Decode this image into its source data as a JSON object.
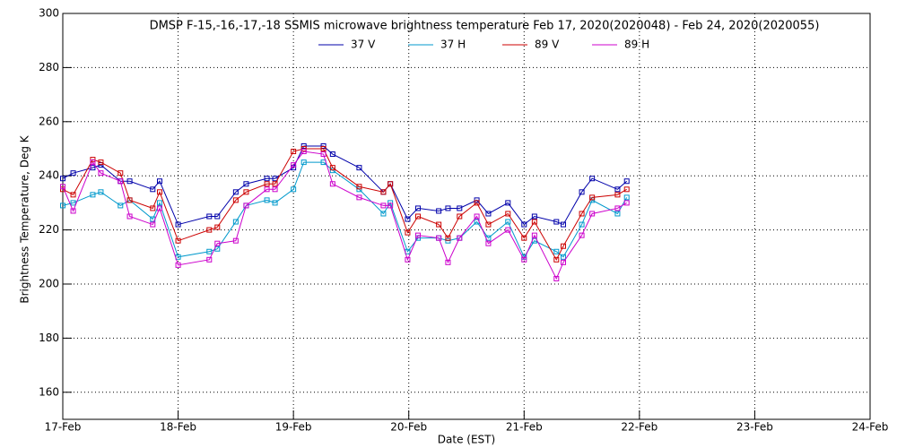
{
  "chart_data": {
    "type": "line",
    "title": "DMSP F-15,-16,-17,-18 SSMIS microwave brightness temperature Feb 17, 2020(2020048) - Feb 24, 2020(2020055)",
    "x_label": "Date (EST)",
    "y_label": "Brightness Temperature, Deg K",
    "x": [
      0,
      0.09,
      0.26,
      0.33,
      0.5,
      0.58,
      0.78,
      0.84,
      1.0,
      1.27,
      1.34,
      1.5,
      1.59,
      1.77,
      1.84,
      2.0,
      2.09,
      2.26,
      2.34,
      2.57,
      2.78,
      2.84,
      2.99,
      3.08,
      3.26,
      3.34,
      3.44,
      3.59,
      3.69,
      3.86,
      4.0,
      4.09,
      4.28,
      4.34,
      4.5,
      4.59,
      4.81,
      4.89
    ],
    "series": [
      {
        "name": "37 V",
        "color": "#0000aa",
        "values": [
          239,
          241,
          243,
          244,
          238,
          238,
          235,
          238,
          222,
          225,
          225,
          234,
          237,
          239,
          239,
          243,
          251,
          251,
          248,
          243,
          234,
          237,
          224,
          228,
          227,
          228,
          228,
          231,
          226,
          230,
          222,
          225,
          223,
          222,
          234,
          239,
          235,
          238
        ]
      },
      {
        "name": "37 H",
        "color": "#0099cc",
        "values": [
          229,
          230,
          233,
          234,
          229,
          231,
          224,
          230,
          210,
          212,
          213,
          223,
          229,
          231,
          230,
          235,
          245,
          245,
          242,
          235,
          226,
          230,
          212,
          217,
          217,
          216,
          217,
          223,
          217,
          223,
          210,
          216,
          212,
          210,
          222,
          231,
          226,
          232
        ]
      },
      {
        "name": "89 V",
        "color": "#cc0000",
        "values": [
          235,
          233,
          246,
          245,
          241,
          231,
          228,
          234,
          216,
          220,
          221,
          231,
          234,
          237,
          237,
          249,
          250,
          250,
          243,
          236,
          234,
          237,
          219,
          225,
          222,
          217,
          225,
          230,
          222,
          226,
          217,
          223,
          209,
          214,
          226,
          232,
          233,
          235
        ]
      },
      {
        "name": "89 H",
        "color": "#cc00cc",
        "values": [
          236,
          227,
          245,
          241,
          238,
          225,
          222,
          228,
          207,
          209,
          215,
          216,
          229,
          235,
          235,
          244,
          249,
          248,
          237,
          232,
          229,
          229,
          209,
          218,
          217,
          208,
          217,
          225,
          215,
          220,
          209,
          218,
          202,
          208,
          218,
          226,
          228,
          230
        ]
      }
    ],
    "xlim": [
      0,
      7
    ],
    "xticks": [
      {
        "value": 0,
        "label": "17-Feb"
      },
      {
        "value": 1,
        "label": "18-Feb"
      },
      {
        "value": 2,
        "label": "19-Feb"
      },
      {
        "value": 3,
        "label": "20-Feb"
      },
      {
        "value": 4,
        "label": "21-Feb"
      },
      {
        "value": 5,
        "label": "22-Feb"
      },
      {
        "value": 6,
        "label": "23-Feb"
      },
      {
        "value": 7,
        "label": "24-Feb"
      }
    ],
    "ylim": [
      150,
      300
    ],
    "yticks": [
      160,
      180,
      200,
      220,
      240,
      260,
      280,
      300
    ],
    "grid": true
  }
}
